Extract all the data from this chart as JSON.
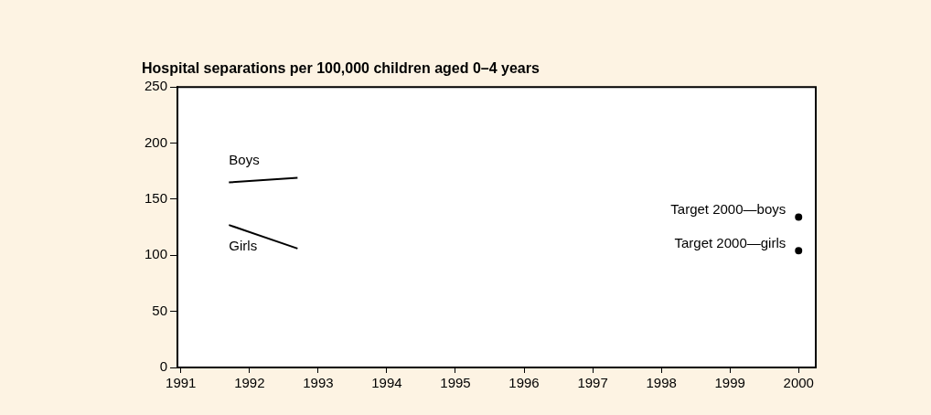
{
  "chart_data": {
    "type": "line",
    "title": "Hospital separations per 100,000 children aged 0–4 years",
    "xlim": [
      1990.95,
      2000.25
    ],
    "xticks": [
      1991,
      1992,
      1993,
      1994,
      1995,
      1996,
      1997,
      1998,
      1999,
      2000
    ],
    "ylim": [
      0,
      250
    ],
    "yticks": [
      0,
      50,
      100,
      150,
      200,
      250
    ],
    "grid": false,
    "legend": false,
    "series": [
      {
        "name": "Boys",
        "color": "#000000",
        "type": "line",
        "marker": "none",
        "x": [
          1991.7,
          1992.7
        ],
        "values": [
          165,
          169
        ]
      },
      {
        "name": "Girls",
        "color": "#000000",
        "type": "line",
        "marker": "none",
        "x": [
          1991.7,
          1992.7
        ],
        "values": [
          127,
          106
        ]
      },
      {
        "name": "Target 2000—boys",
        "color": "#000000",
        "type": "scatter",
        "marker": "circle",
        "x": [
          2000
        ],
        "values": [
          134
        ]
      },
      {
        "name": "Target 2000—girls",
        "color": "#000000",
        "type": "scatter",
        "marker": "circle",
        "x": [
          2000
        ],
        "values": [
          104
        ]
      }
    ]
  }
}
